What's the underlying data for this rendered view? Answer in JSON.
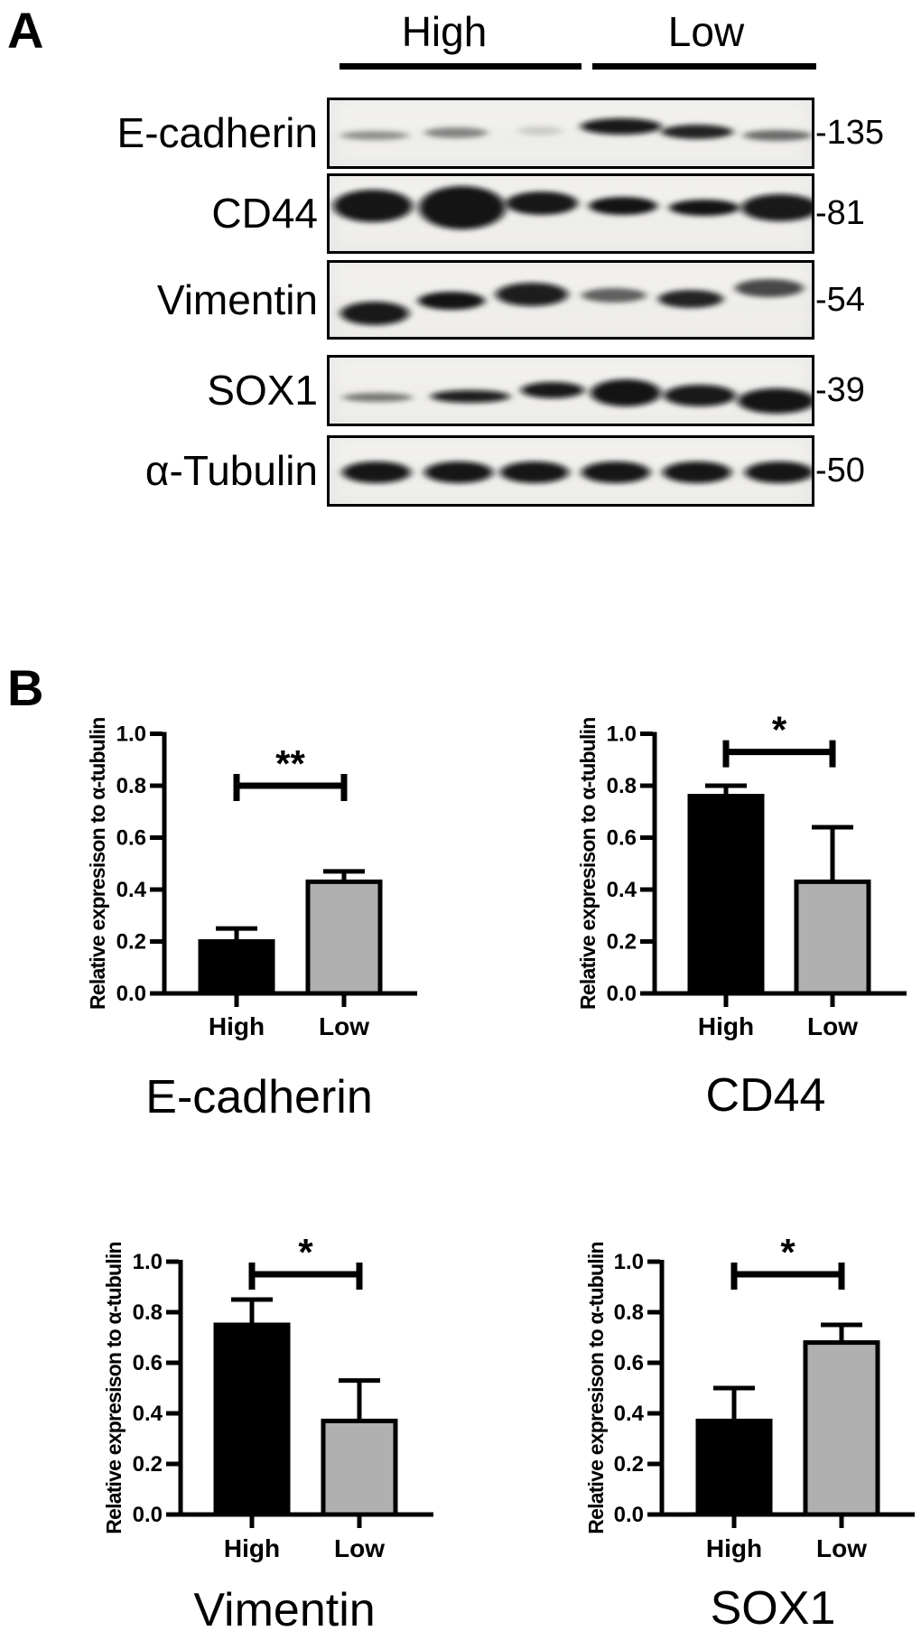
{
  "figure": {
    "panel_a": {
      "label": "A",
      "group_headers": [
        "High",
        "Low"
      ],
      "rows": [
        {
          "protein": "E-cadherin",
          "marker": "-135",
          "bands": [
            [
              53,
              42,
              38,
              5,
              0.4
            ],
            [
              143,
              39,
              35,
              6,
              0.45
            ],
            [
              236,
              37,
              25,
              5,
              0.15
            ],
            [
              326,
              32,
              45,
              9,
              0.95
            ],
            [
              410,
              38,
              40,
              8,
              0.85
            ],
            [
              499,
              42,
              38,
              6,
              0.55
            ]
          ]
        },
        {
          "protein": "CD44",
          "marker": "-81",
          "bands": [
            [
              51,
              36,
              44,
              18,
              0.96
            ],
            [
              150,
              38,
              48,
              24,
              0.97
            ],
            [
              238,
              33,
              40,
              13,
              0.9
            ],
            [
              328,
              36,
              38,
              10,
              0.92
            ],
            [
              418,
              38,
              39,
              9,
              0.92
            ],
            [
              502,
              38,
              43,
              15,
              0.95
            ]
          ]
        },
        {
          "protein": "Vimentin",
          "marker": "-54",
          "bands": [
            [
              53,
              59,
              38,
              13,
              0.95
            ],
            [
              138,
              45,
              37,
              10,
              0.92
            ],
            [
              227,
              38,
              40,
              13,
              0.93
            ],
            [
              318,
              39,
              36,
              8,
              0.6
            ],
            [
              403,
              43,
              36,
              10,
              0.85
            ],
            [
              490,
              31,
              38,
              10,
              0.7
            ]
          ]
        },
        {
          "protein": "SOX1",
          "marker": "-39",
          "bands": [
            [
              56,
              47,
              39,
              5,
              0.5
            ],
            [
              159,
              46,
              44,
              7,
              0.93
            ],
            [
              250,
              39,
              35,
              9,
              0.95
            ],
            [
              331,
              42,
              39,
              15,
              0.97
            ],
            [
              413,
              45,
              40,
              12,
              0.95
            ],
            [
              498,
              51,
              43,
              14,
              0.97
            ]
          ]
        },
        {
          "protein": "α-Tubulin",
          "marker": "-50",
          "bands": [
            [
              55,
              41,
              38,
              12,
              0.96
            ],
            [
              146,
              41,
              38,
              12,
              0.96
            ],
            [
              230,
              41,
              38,
              12,
              0.96
            ],
            [
              320,
              41,
              38,
              12,
              0.96
            ],
            [
              410,
              41,
              38,
              12,
              0.96
            ],
            [
              501,
              41,
              38,
              12,
              0.96
            ]
          ]
        }
      ]
    },
    "panel_b": {
      "label": "B"
    }
  },
  "chart_data": [
    {
      "type": "bar",
      "title": "E-cadherin",
      "ylabel": "Relative expresison to α-tubulin",
      "categories": [
        "High",
        "Low"
      ],
      "values": [
        0.2,
        0.43
      ],
      "errors": [
        0.05,
        0.04
      ],
      "significance": "**",
      "bracket_y": 0.8,
      "ylim": [
        0,
        1.0
      ],
      "yticks": [
        "0.0",
        "0.2",
        "0.4",
        "0.6",
        "0.8",
        "1.0"
      ],
      "bar_colors": [
        "#000000",
        "#b0b0b0"
      ],
      "grid": false,
      "legend": "none"
    },
    {
      "type": "bar",
      "title": "CD44",
      "ylabel": "Relative expresison to α-tubulin",
      "categories": [
        "High",
        "Low"
      ],
      "values": [
        0.76,
        0.43
      ],
      "errors": [
        0.04,
        0.21
      ],
      "significance": "*",
      "bracket_y": 0.93,
      "ylim": [
        0,
        1.0
      ],
      "yticks": [
        "0.0",
        "0.2",
        "0.4",
        "0.6",
        "0.8",
        "1.0"
      ],
      "bar_colors": [
        "#000000",
        "#b0b0b0"
      ],
      "grid": false,
      "legend": "none"
    },
    {
      "type": "bar",
      "title": "Vimentin",
      "ylabel": "Relative expresison to α-tubulin",
      "categories": [
        "High",
        "Low"
      ],
      "values": [
        0.75,
        0.37
      ],
      "errors": [
        0.1,
        0.16
      ],
      "significance": "*",
      "bracket_y": 0.95,
      "ylim": [
        0,
        1.0
      ],
      "yticks": [
        "0.0",
        "0.2",
        "0.4",
        "0.6",
        "0.8",
        "1.0"
      ],
      "bar_colors": [
        "#000000",
        "#b0b0b0"
      ],
      "grid": false,
      "legend": "none"
    },
    {
      "type": "bar",
      "title": "SOX1",
      "ylabel": "Relative expresison to α-tubulin",
      "categories": [
        "High",
        "Low"
      ],
      "values": [
        0.37,
        0.68
      ],
      "errors": [
        0.13,
        0.07
      ],
      "significance": "*",
      "bracket_y": 0.95,
      "ylim": [
        0,
        1.0
      ],
      "yticks": [
        "0.0",
        "0.2",
        "0.4",
        "0.6",
        "0.8",
        "1.0"
      ],
      "bar_colors": [
        "#000000",
        "#b0b0b0"
      ],
      "grid": false,
      "legend": "none"
    }
  ]
}
